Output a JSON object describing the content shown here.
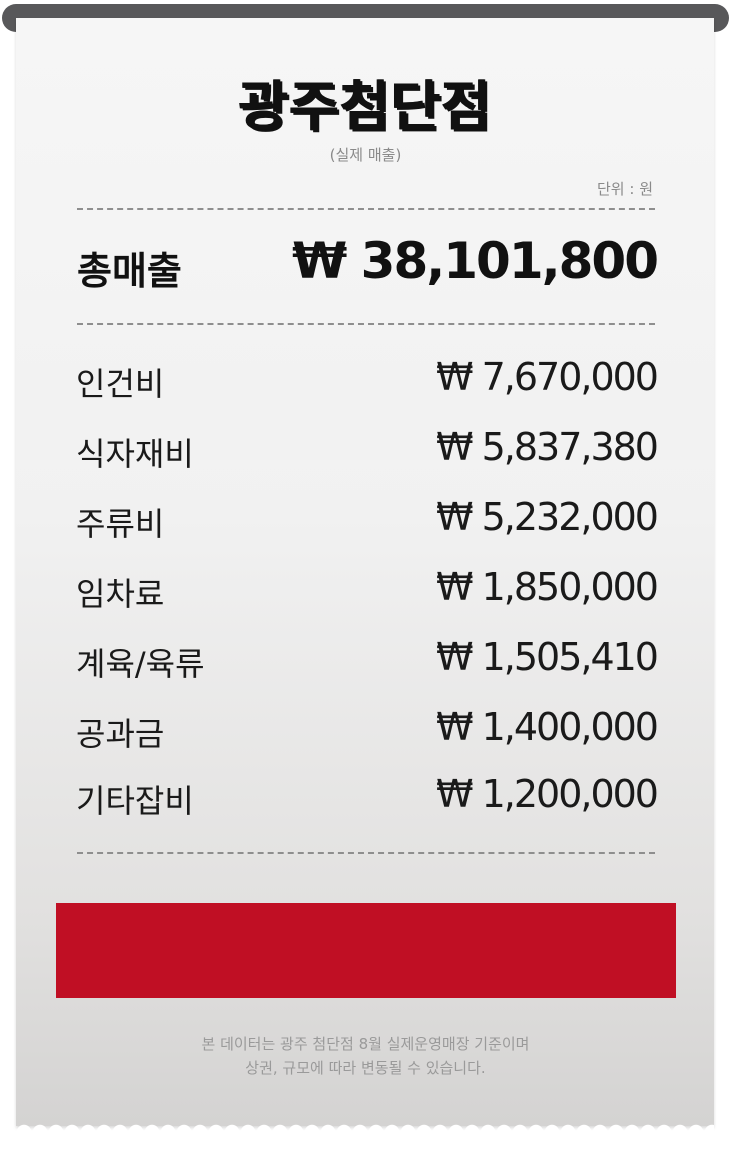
{
  "title": "광주첨단점",
  "subtitle": "(실제 매출)",
  "unit_label": "단위 : 원",
  "total": {
    "label": "총매출",
    "value": "₩ 38,101,800"
  },
  "expenses": [
    {
      "label": "인건비",
      "value": "₩ 7,670,000"
    },
    {
      "label": "식자재비",
      "value": "₩ 5,837,380"
    },
    {
      "label": "주류비",
      "value": "₩ 5,232,000"
    },
    {
      "label": "임차료",
      "value": "₩ 1,850,000"
    },
    {
      "label": "계육/육류",
      "value": "₩ 1,505,410"
    },
    {
      "label": "공과금",
      "value": "₩ 1,400,000"
    },
    {
      "label": "기타잡비",
      "value": "₩ 1,200,000"
    }
  ],
  "footnote": {
    "line1": "본 데이터는 광주 첨단점 8월 실제운영매장 기준이며",
    "line2": "상권, 규모에 따라 변동될 수 있습니다."
  },
  "colors": {
    "accent_red": "#c00f24",
    "roller": "#58585a",
    "paper": "#f1f1f1"
  }
}
